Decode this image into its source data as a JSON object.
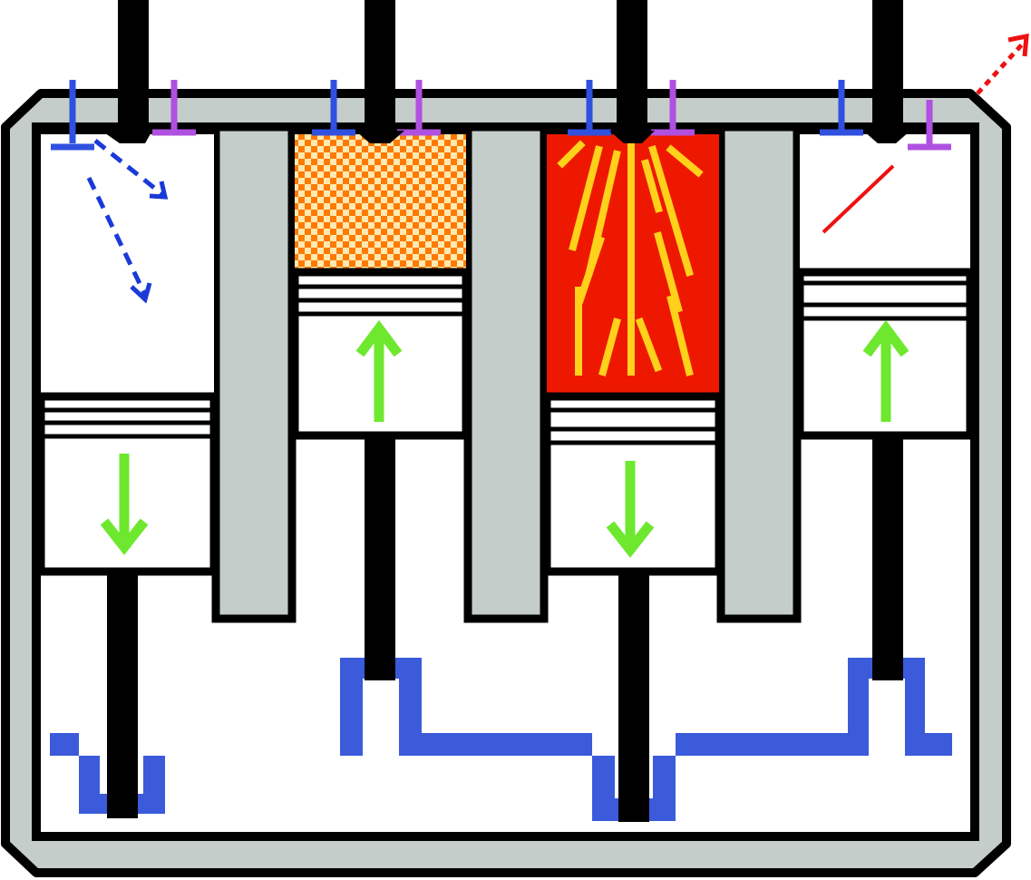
{
  "diagram": {
    "kind": "four-stroke engine, four cylinders",
    "cylinders": [
      {
        "id": "cyl-1",
        "stroke": "intake",
        "piston_direction": "down",
        "intake_valve": "open",
        "exhaust_valve": "closed",
        "chamber": "air-fuel-inflow"
      },
      {
        "id": "cyl-2",
        "stroke": "compression",
        "piston_direction": "up",
        "intake_valve": "closed",
        "exhaust_valve": "closed",
        "chamber": "compressed-mixture"
      },
      {
        "id": "cyl-3",
        "stroke": "power",
        "piston_direction": "down",
        "intake_valve": "closed",
        "exhaust_valve": "closed",
        "chamber": "combustion"
      },
      {
        "id": "cyl-4",
        "stroke": "exhaust",
        "piston_direction": "up",
        "intake_valve": "closed",
        "exhaust_valve": "open",
        "chamber": "exhaust-outflow"
      }
    ]
  },
  "colors": {
    "outline": "#000000",
    "block_gray": "#c5cdcb",
    "crankshaft": "#3b5bdb",
    "intake_valve": "#3050e0",
    "exhaust_valve": "#b050e0",
    "direction_arrow": "#6ee82e",
    "combustion_fill": "#ee1800",
    "flame": "#ffd11a",
    "compressed_a": "#ff7a00",
    "compressed_b": "#ffe9b0",
    "intake_flow": "#1a3ad8",
    "exhaust_flow": "#ee1111"
  }
}
